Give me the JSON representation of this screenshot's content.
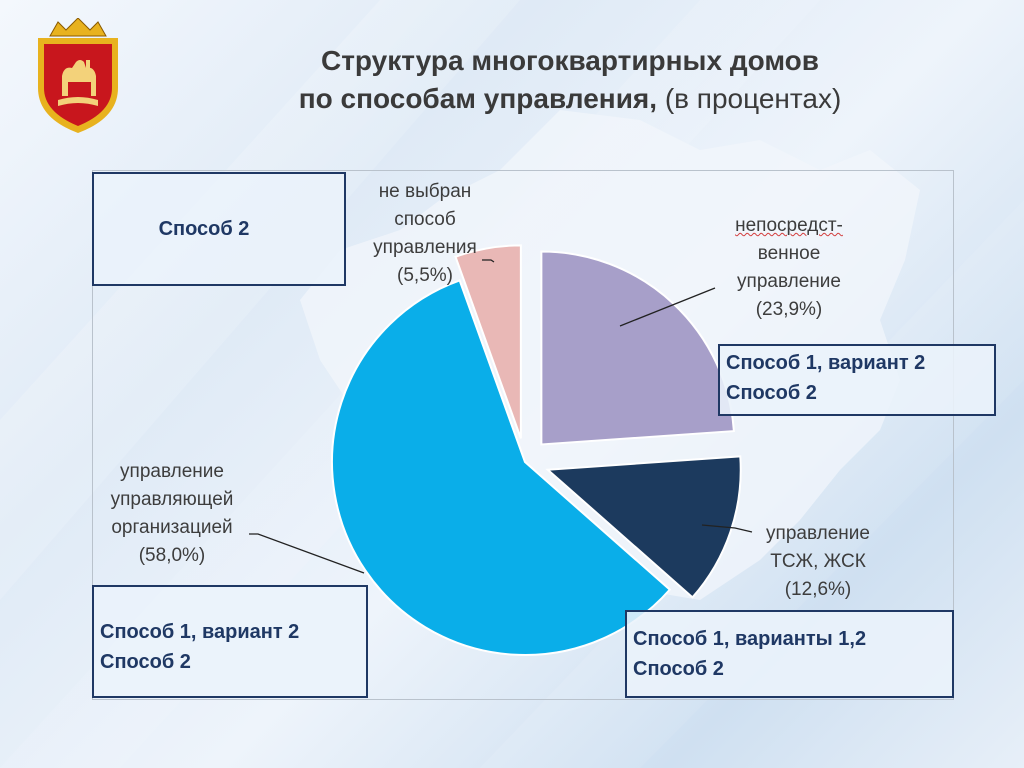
{
  "title": {
    "line1": "Структура многоквартирных домов",
    "line2_main": "по способам управления,",
    "line2_sub": "(в процентах)"
  },
  "chart_data": {
    "type": "pie",
    "title": "Структура многоквартирных домов по способам управления, (в процентах)",
    "slices": [
      {
        "label": "непосредственное управление",
        "value": 23.9,
        "color": "#a79fc9",
        "exploded": true
      },
      {
        "label": "управление ТСЖ, ЖСК",
        "value": 12.6,
        "color": "#1c3a5e",
        "exploded": true
      },
      {
        "label": "управление управляющей организацией",
        "value": 58.0,
        "color": "#0aaee9",
        "exploded": false
      },
      {
        "label": "не выбран способ управления",
        "value": 5.5,
        "color": "#e9b8b6",
        "exploded": true
      }
    ]
  },
  "labels": {
    "direct": {
      "l1": "непосредст-",
      "l2": "венное",
      "l3": "управление",
      "pct": "(23,9%)"
    },
    "tsj": {
      "l1": "управление",
      "l2": "ТСЖ, ЖСК",
      "pct": "(12,6%)"
    },
    "uo": {
      "l1": "управление",
      "l2": "управляющей",
      "l3": "организацией",
      "pct": "(58,0%)"
    },
    "none": {
      "l1": "не выбран",
      "l2": "способ",
      "l3": "управления",
      "pct": "(5,5%)"
    }
  },
  "method_boxes": {
    "top_left": {
      "line1": "Способ 2"
    },
    "mid_right": {
      "line1": "Способ 1, вариант 2",
      "line2": "Способ 2"
    },
    "bottom_left": {
      "line1": "Способ 1, вариант 2",
      "line2": "Способ 2"
    },
    "bottom_right": {
      "line1": "Способ 1, варианты 1,2",
      "line2": "Способ 2"
    }
  }
}
